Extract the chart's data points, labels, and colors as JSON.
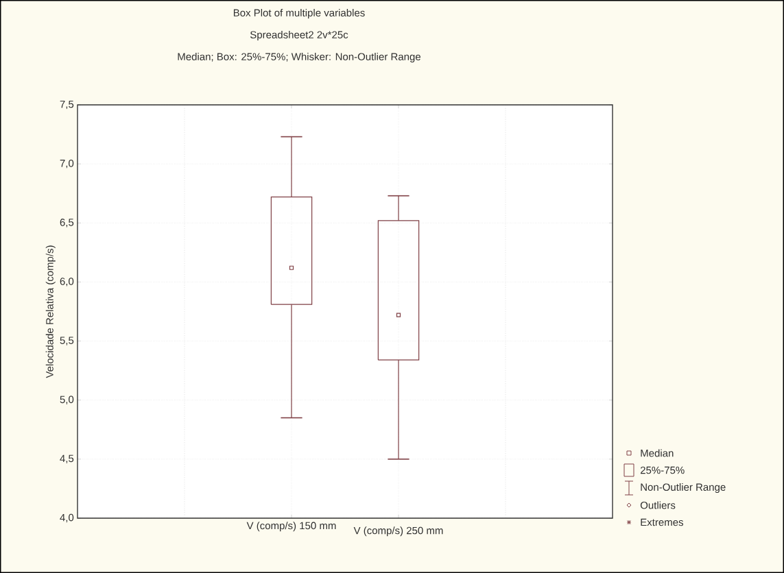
{
  "chart_data": {
    "type": "box",
    "title": "Box Plot of multiple variables",
    "subtitle": "Spreadsheet2 2v*25c",
    "annotations": [
      "Median; Box: 25%-75%; Whisker: Non-Outlier Range",
      "Median",
      "25%-75%",
      "Non-Outlier Range",
      "Outliers",
      "Extremes"
    ],
    "ylabel": "Velocidade Relativa (comp/s)",
    "categories": [
      "V (comp/s) 150 mm",
      "V (comp/s) 250 mm"
    ],
    "color": "#7f3f44",
    "boxes": [
      {
        "low": 4.85,
        "q1": 5.81,
        "median": 6.12,
        "q3": 6.72,
        "high": 7.23
      },
      {
        "low": 4.5,
        "q1": 5.34,
        "median": 5.72,
        "q3": 6.52,
        "high": 6.73
      }
    ],
    "ylim": [
      4.0,
      7.5
    ],
    "yticks": [
      {
        "value": 4.0,
        "label": "4,0"
      },
      {
        "value": 4.5,
        "label": "4,5"
      },
      {
        "value": 5.0,
        "label": "5,0"
      },
      {
        "value": 5.5,
        "label": "5,5"
      },
      {
        "value": 6.0,
        "label": "6,0"
      },
      {
        "value": 6.5,
        "label": "6,5"
      },
      {
        "value": 7.0,
        "label": "7,0"
      },
      {
        "value": 7.5,
        "label": "7,5"
      }
    ],
    "grid": true
  }
}
